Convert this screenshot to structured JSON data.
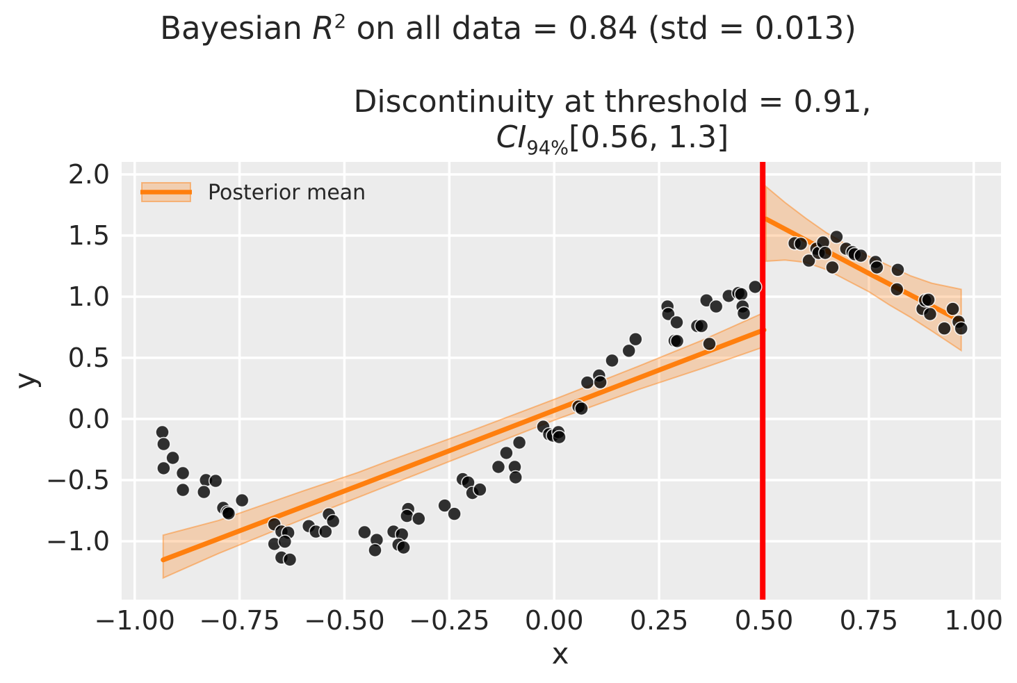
{
  "figure": {
    "suptitle": {
      "pre": "Bayesian ",
      "math_var": "R",
      "sup": "2",
      "post": " on all data = 0.84 (std = 0.013)"
    },
    "axes_title": {
      "line1": "Discontinuity at threshold = 0.91,",
      "ci_var": "CI",
      "ci_sub": "94%",
      "ci_interval": "[0.56, 1.3]"
    },
    "xlabel": "x",
    "ylabel": "y"
  },
  "legend": {
    "label": "Posterior mean",
    "position": "upper left"
  },
  "colors": {
    "figure_bg": "#ffffff",
    "axes_bg": "#ececec",
    "grid": "#ffffff",
    "posterior_mean": "#ff7f0e",
    "ci_band_fill": "rgba(255,127,14,0.27)",
    "ci_band_edge": "rgba(255,127,14,0.45)",
    "threshold": "#ff0000",
    "scatter_fill": "#000000",
    "scatter_edge": "rgba(255,255,255,0.85)",
    "text": "#262626"
  },
  "chart_data": {
    "type": "scatter",
    "title": "Bayesian R^2 on all data = 0.84 (std = 0.013)",
    "subtitle": "Discontinuity at threshold = 0.91, CI_94% [0.56, 1.3]",
    "xlabel": "x",
    "ylabel": "y",
    "xlim": [
      -1.031,
      1.065
    ],
    "ylim": [
      -1.477,
      2.102
    ],
    "grid": true,
    "x_ticks": {
      "values": [
        -1.0,
        -0.75,
        -0.5,
        -0.25,
        0.0,
        0.25,
        0.5,
        0.75,
        1.0
      ],
      "labels": [
        "−1.00",
        "−0.75",
        "−0.50",
        "−0.25",
        "0.00",
        "0.25",
        "0.50",
        "0.75",
        "1.00"
      ]
    },
    "y_ticks": {
      "values": [
        -1.0,
        -0.5,
        0.0,
        0.5,
        1.0,
        1.5,
        2.0
      ],
      "labels": [
        "−1.0",
        "−0.5",
        "0.0",
        "0.5",
        "1.0",
        "1.5",
        "2.0"
      ]
    },
    "threshold_line": {
      "x": 0.497,
      "color": "#ff0000"
    },
    "series": [
      {
        "name": "observations-left",
        "type": "scatter",
        "points": [
          [
            -0.934,
            -0.108
          ],
          [
            -0.931,
            -0.205
          ],
          [
            -0.909,
            -0.318
          ],
          [
            -0.931,
            -0.403
          ],
          [
            -0.885,
            -0.443
          ],
          [
            -0.885,
            -0.58
          ],
          [
            -0.83,
            -0.5
          ],
          [
            -0.807,
            -0.506
          ],
          [
            -0.835,
            -0.597
          ],
          [
            -0.789,
            -0.727
          ],
          [
            -0.779,
            -0.761
          ],
          [
            -0.776,
            -0.772
          ],
          [
            -0.744,
            -0.665
          ],
          [
            -0.667,
            -0.862
          ],
          [
            -0.65,
            -0.92
          ],
          [
            -0.634,
            -0.93
          ],
          [
            -0.667,
            -1.022
          ],
          [
            -0.642,
            -1.003
          ],
          [
            -0.65,
            -1.133
          ],
          [
            -0.63,
            -1.15
          ],
          [
            -0.585,
            -0.876
          ],
          [
            -0.568,
            -0.921
          ],
          [
            -0.545,
            -0.921
          ],
          [
            -0.537,
            -0.78
          ],
          [
            -0.527,
            -0.835
          ],
          [
            -0.452,
            -0.926
          ],
          [
            -0.423,
            -0.989
          ],
          [
            -0.427,
            -1.073
          ],
          [
            -0.383,
            -0.921
          ],
          [
            -0.363,
            -0.944
          ],
          [
            -0.371,
            -1.028
          ],
          [
            -0.359,
            -1.051
          ],
          [
            -0.348,
            -0.736
          ],
          [
            -0.351,
            -0.793
          ],
          [
            -0.323,
            -0.815
          ],
          [
            -0.261,
            -0.708
          ],
          [
            -0.238,
            -0.776
          ],
          [
            -0.218,
            -0.492
          ],
          [
            -0.205,
            -0.52
          ],
          [
            -0.195,
            -0.605
          ],
          [
            -0.177,
            -0.577
          ],
          [
            -0.133,
            -0.392
          ],
          [
            -0.114,
            -0.278
          ],
          [
            -0.094,
            -0.392
          ],
          [
            -0.092,
            -0.477
          ],
          [
            -0.083,
            -0.193
          ],
          [
            -0.026,
            -0.063
          ],
          [
            -0.012,
            -0.125
          ],
          [
            -0.003,
            -0.136
          ],
          [
            0.01,
            -0.108
          ],
          [
            0.012,
            -0.148
          ],
          [
            0.058,
            0.102
          ],
          [
            0.065,
            0.085
          ],
          [
            0.079,
            0.298
          ],
          [
            0.107,
            0.355
          ],
          [
            0.11,
            0.3
          ],
          [
            0.138,
            0.478
          ],
          [
            0.178,
            0.558
          ],
          [
            0.194,
            0.652
          ],
          [
            0.27,
            0.92
          ],
          [
            0.272,
            0.858
          ],
          [
            0.292,
            0.79
          ],
          [
            0.287,
            0.64
          ],
          [
            0.293,
            0.637
          ],
          [
            0.341,
            0.76
          ],
          [
            0.351,
            0.76
          ],
          [
            0.363,
            0.97
          ],
          [
            0.386,
            0.92
          ],
          [
            0.37,
            0.614
          ],
          [
            0.416,
            1.006
          ],
          [
            0.439,
            1.03
          ],
          [
            0.446,
            1.02
          ],
          [
            0.449,
            0.92
          ],
          [
            0.452,
            0.864
          ],
          [
            0.479,
            1.08
          ]
        ]
      },
      {
        "name": "observations-right",
        "type": "scatter",
        "points": [
          [
            0.573,
            1.437
          ],
          [
            0.588,
            1.432
          ],
          [
            0.607,
            1.295
          ],
          [
            0.625,
            1.392
          ],
          [
            0.63,
            1.358
          ],
          [
            0.641,
            1.443
          ],
          [
            0.646,
            1.358
          ],
          [
            0.663,
            1.239
          ],
          [
            0.673,
            1.489
          ],
          [
            0.696,
            1.392
          ],
          [
            0.711,
            1.364
          ],
          [
            0.716,
            1.347
          ],
          [
            0.731,
            1.335
          ],
          [
            0.766,
            1.284
          ],
          [
            0.769,
            1.239
          ],
          [
            0.819,
            1.22
          ],
          [
            0.817,
            1.06
          ],
          [
            0.878,
            0.9
          ],
          [
            0.884,
            0.97
          ],
          [
            0.892,
            0.975
          ],
          [
            0.896,
            0.858
          ],
          [
            0.95,
            0.9
          ],
          [
            0.93,
            0.74
          ],
          [
            0.964,
            0.795
          ],
          [
            0.97,
            0.74
          ]
        ]
      },
      {
        "name": "posterior-mean-left",
        "type": "line",
        "points": [
          [
            -0.932,
            -1.152
          ],
          [
            -0.47,
            -0.55
          ],
          [
            0.0,
            0.07
          ],
          [
            0.25,
            0.4
          ],
          [
            0.5,
            0.728
          ]
        ]
      },
      {
        "name": "posterior-mean-right",
        "type": "line",
        "points": [
          [
            0.505,
            1.635
          ],
          [
            0.75,
            1.19
          ],
          [
            0.97,
            0.8
          ]
        ]
      },
      {
        "name": "ci-band-left",
        "type": "band",
        "polygon": [
          [
            -0.932,
            -0.95
          ],
          [
            -0.8,
            -0.83
          ],
          [
            -0.6,
            -0.59
          ],
          [
            -0.47,
            -0.44
          ],
          [
            -0.4,
            -0.35
          ],
          [
            -0.2,
            -0.1
          ],
          [
            0.0,
            0.16
          ],
          [
            0.2,
            0.43
          ],
          [
            0.35,
            0.64
          ],
          [
            0.5,
            0.87
          ],
          [
            0.5,
            0.59
          ],
          [
            0.35,
            0.41
          ],
          [
            0.2,
            0.24
          ],
          [
            0.0,
            -0.01
          ],
          [
            -0.2,
            -0.28
          ],
          [
            -0.4,
            -0.55
          ],
          [
            -0.6,
            -0.82
          ],
          [
            -0.8,
            -1.1
          ],
          [
            -0.932,
            -1.3
          ]
        ]
      },
      {
        "name": "ci-band-right",
        "type": "band",
        "polygon": [
          [
            0.505,
            1.9
          ],
          [
            0.55,
            1.77
          ],
          [
            0.6,
            1.64
          ],
          [
            0.65,
            1.52
          ],
          [
            0.7,
            1.42
          ],
          [
            0.75,
            1.33
          ],
          [
            0.8,
            1.25
          ],
          [
            0.85,
            1.17
          ],
          [
            0.9,
            1.11
          ],
          [
            0.97,
            1.06
          ],
          [
            0.97,
            0.56
          ],
          [
            0.9,
            0.72
          ],
          [
            0.85,
            0.83
          ],
          [
            0.8,
            0.93
          ],
          [
            0.75,
            1.04
          ],
          [
            0.7,
            1.13
          ],
          [
            0.65,
            1.22
          ],
          [
            0.6,
            1.28
          ],
          [
            0.55,
            1.3
          ],
          [
            0.505,
            1.29
          ]
        ]
      }
    ],
    "legend_entries": [
      "Posterior mean"
    ]
  }
}
